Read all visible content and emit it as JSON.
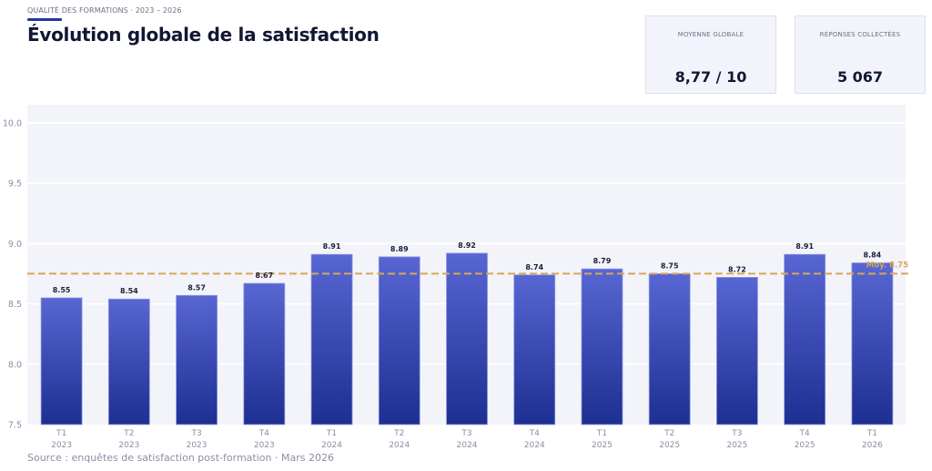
{
  "header": {
    "eyebrow": "QUALITÉ DES FORMATIONS  ·  2023 – 2026",
    "title": "Évolution globale de la satisfaction"
  },
  "kpis": [
    {
      "label": "MOYENNE GLOBALE",
      "value": "8,77 / 10"
    },
    {
      "label": "RÉPONSES COLLECTÉES",
      "value": "5 067"
    }
  ],
  "colors": {
    "bar_top": "#5866d3",
    "bar_bottom": "#1d2f91",
    "bar_border": "#8f9ae3",
    "plot_bg": "#f3f4fa",
    "gridline": "#ffffff",
    "average_line": "#d8a657",
    "label_text": "#1a1f3d",
    "tick_text": "#8a8fa5"
  },
  "chart_data": {
    "type": "bar",
    "title": "Évolution globale de la satisfaction",
    "xlabel": "",
    "ylabel": "",
    "ylim": [
      7.5,
      10.15
    ],
    "yticks": [
      7.5,
      8.0,
      8.5,
      9.0,
      9.5,
      10.0
    ],
    "ytick_labels": [
      "7.5",
      "8.0",
      "8.5",
      "9.0",
      "9.5",
      "10.0"
    ],
    "grid": true,
    "categories": [
      [
        "T1",
        "2023"
      ],
      [
        "T2",
        "2023"
      ],
      [
        "T3",
        "2023"
      ],
      [
        "T4",
        "2023"
      ],
      [
        "T1",
        "2024"
      ],
      [
        "T2",
        "2024"
      ],
      [
        "T3",
        "2024"
      ],
      [
        "T4",
        "2024"
      ],
      [
        "T1",
        "2025"
      ],
      [
        "T2",
        "2025"
      ],
      [
        "T3",
        "2025"
      ],
      [
        "T4",
        "2025"
      ],
      [
        "T1",
        "2026"
      ]
    ],
    "values": [
      8.55,
      8.54,
      8.57,
      8.67,
      8.91,
      8.89,
      8.92,
      8.74,
      8.79,
      8.75,
      8.72,
      8.91,
      8.84
    ],
    "data_labels": [
      "8.55",
      "8.54",
      "8.57",
      "8.67",
      "8.91",
      "8.89",
      "8.92",
      "8.74",
      "8.79",
      "8.75",
      "8.72",
      "8.91",
      "8.84"
    ],
    "reference_line": {
      "value": 8.75,
      "label": "Moy. 8.75",
      "style": "dashed"
    }
  },
  "footer": {
    "source": "Source : enquêtes de satisfaction post-formation  ·  Mars 2026"
  }
}
